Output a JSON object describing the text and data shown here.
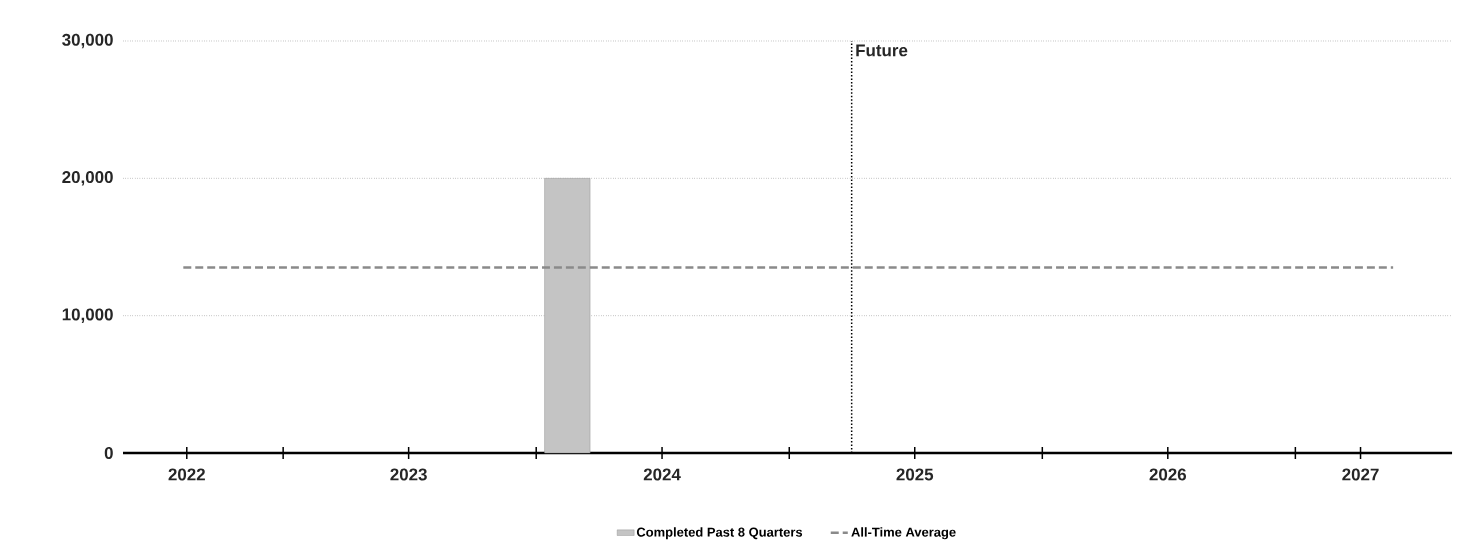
{
  "chart_data": {
    "type": "bar",
    "series": [
      {
        "name": "Completed Past 8 Quarters",
        "color": "#c4c4c4",
        "x": [
          "2024-02-15"
        ],
        "values": [
          20000
        ]
      },
      {
        "name": "All-Time Average",
        "type": "line",
        "color": "#8a8a8a",
        "line_style": "dashed",
        "x": [
          "2022-08-10",
          "2027-05-22"
        ],
        "values": [
          13500,
          13500
        ]
      }
    ],
    "xlim": [
      "2022-05-15",
      "2027-08-15"
    ],
    "xticks": [
      {
        "value": "2023-01-01",
        "label": null
      },
      {
        "value": "2024-01-01",
        "label": null
      },
      {
        "value": "2025-01-01",
        "label": null
      },
      {
        "value": "2026-01-01",
        "label": null
      },
      {
        "value": "2027-01-01",
        "label": null
      },
      {
        "value": "2022-08-15",
        "label": "2022"
      },
      {
        "value": "2023-07-01",
        "label": "2023"
      },
      {
        "value": "2024-07-01",
        "label": "2024"
      },
      {
        "value": "2025-07-01",
        "label": "2025"
      },
      {
        "value": "2026-07-01",
        "label": "2026"
      },
      {
        "value": "2027-04-05",
        "label": "2027"
      }
    ],
    "ylim": [
      0,
      30000
    ],
    "yticks": [
      0,
      {
        "value": 10000,
        "label": "10,000"
      },
      {
        "value": 20000,
        "label": "20,000"
      },
      {
        "value": 30000,
        "label": "30,000"
      }
    ],
    "ref_lines": [
      {
        "axis": "x",
        "value": "2025-04-01",
        "label": "Future",
        "color": "#000000",
        "line_style": "dotted"
      }
    ],
    "grid": "y",
    "legend": "bottom"
  }
}
